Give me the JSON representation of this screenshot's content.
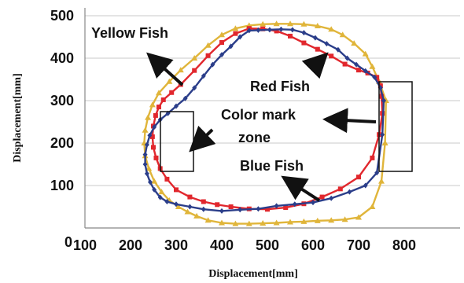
{
  "chart_data": {
    "type": "line",
    "title": "",
    "xlabel": "Displacement[mm]",
    "ylabel": "Displacement[mm]",
    "xlim": [
      0,
      800
    ],
    "ylim": [
      0,
      500
    ],
    "xticks": [
      "100",
      "200",
      "300",
      "400",
      "500",
      "600",
      "700",
      "800"
    ],
    "yticks": [
      "100",
      "200",
      "300",
      "400",
      "500"
    ],
    "origin_label": "0",
    "grid": "horizontal",
    "series": [
      {
        "name": "Yellow Fish",
        "color": "#e0b53a",
        "marker": "triangle",
        "x": [
          760,
          745,
          730,
          715,
          690,
          665,
          640,
          610,
          580,
          550,
          520,
          490,
          460,
          430,
          400,
          370,
          340,
          310,
          285,
          262,
          248,
          238,
          232,
          230,
          232,
          240,
          252,
          268,
          285,
          305,
          325,
          345,
          370,
          400,
          430,
          460,
          490,
          520,
          550,
          580,
          610,
          640,
          670,
          700,
          730,
          750,
          758,
          760
        ],
        "y": [
          300,
          345,
          380,
          410,
          435,
          455,
          468,
          476,
          480,
          481,
          481,
          480,
          477,
          470,
          455,
          430,
          400,
          372,
          345,
          318,
          290,
          260,
          230,
          200,
          170,
          140,
          110,
          85,
          65,
          50,
          38,
          28,
          18,
          12,
          10,
          10,
          11,
          12,
          14,
          15,
          17,
          18,
          20,
          25,
          50,
          110,
          200,
          300
        ]
      },
      {
        "name": "Red Fish",
        "color": "#e1272d",
        "marker": "square",
        "x": [
          750,
          748,
          740,
          720,
          700,
          670,
          640,
          610,
          580,
          550,
          520,
          490,
          460,
          430,
          400,
          370,
          340,
          310,
          290,
          272,
          262,
          255,
          250,
          248,
          250,
          256,
          265,
          280,
          300,
          330,
          360,
          390,
          420,
          460,
          500,
          540,
          580,
          620,
          660,
          700,
          730,
          745,
          752,
          750
        ],
        "y": [
          310,
          335,
          355,
          365,
          372,
          386,
          405,
          421,
          436,
          452,
          464,
          469,
          470,
          458,
          437,
          406,
          371,
          338,
          319,
          302,
          285,
          265,
          240,
          215,
          190,
          165,
          140,
          115,
          90,
          73,
          62,
          55,
          50,
          45,
          44,
          48,
          57,
          73,
          92,
          120,
          165,
          220,
          270,
          310
        ]
      },
      {
        "name": "Blue Fish",
        "color": "#2b3e8a",
        "marker": "diamond",
        "x": [
          755,
          748,
          735,
          715,
          695,
          675,
          655,
          630,
          605,
          580,
          555,
          530,
          505,
          480,
          460,
          440,
          420,
          400,
          380,
          360,
          340,
          320,
          300,
          282,
          265,
          252,
          242,
          236,
          232,
          232,
          236,
          243,
          252,
          265,
          280,
          300,
          330,
          360,
          400,
          440,
          480,
          520,
          560,
          600,
          640,
          680,
          715,
          740,
          752,
          755
        ],
        "y": [
          300,
          330,
          355,
          370,
          385,
          400,
          420,
          434,
          448,
          460,
          467,
          468,
          467,
          466,
          465,
          450,
          428,
          408,
          385,
          358,
          330,
          305,
          287,
          270,
          255,
          238,
          218,
          196,
          173,
          150,
          128,
          108,
          90,
          72,
          62,
          56,
          50,
          44,
          40,
          43,
          45,
          52,
          56,
          60,
          70,
          85,
          100,
          130,
          220,
          300
        ]
      }
    ],
    "annotations": {
      "yellow": "Yellow Fish",
      "red": "Red Fish",
      "color_zone_1": "Color mark",
      "color_zone_2": "zone",
      "blue": "Blue Fish"
    }
  }
}
